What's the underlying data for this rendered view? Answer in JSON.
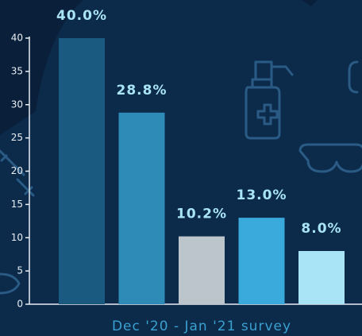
{
  "chart_data": {
    "type": "bar",
    "x_label": "Dec '20 - Jan '21 survey",
    "categories": [
      null,
      null,
      null,
      null,
      null
    ],
    "values": [
      40,
      28.8,
      10.2,
      13,
      8
    ],
    "value_labels": [
      "40.0%",
      "28.8%",
      "10.2%",
      "13.0%",
      "8.0%"
    ],
    "colors": [
      "#1b5a80",
      "#2e8bb8",
      "#bcc4cc",
      "#3aa9dc",
      "#a8e4f5"
    ],
    "ylim": [
      0,
      40
    ],
    "yticks": [
      0,
      5,
      10,
      15,
      20,
      25,
      30,
      35,
      40
    ]
  }
}
